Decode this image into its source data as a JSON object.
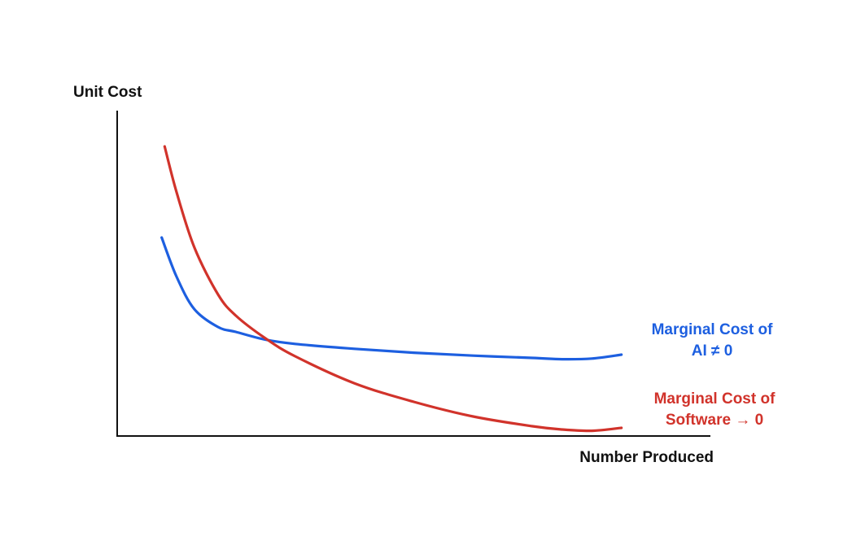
{
  "chart_data": {
    "type": "line",
    "title": "",
    "xlabel": "Number Produced",
    "ylabel": "Unit Cost",
    "xlim": [
      0,
      100
    ],
    "ylim": [
      0,
      100
    ],
    "grid": false,
    "legend": "none",
    "series": [
      {
        "name": "Marginal Cost of AI ≠ 0",
        "label_lines": [
          "Marginal Cost of",
          "AI ≠ 0"
        ],
        "color": "#1d5fe0",
        "x": [
          7.5,
          10,
          13,
          17,
          20,
          25,
          30,
          40,
          50,
          60,
          70,
          75,
          80,
          85
        ],
        "y": [
          61,
          49,
          39,
          33.5,
          32,
          29.6,
          28.3,
          26.8,
          25.6,
          24.7,
          24,
          23.6,
          23.8,
          25
        ]
      },
      {
        "name": "Marginal Cost of Software → 0",
        "label_lines": [
          "Marginal Cost of",
          "Software → 0"
        ],
        "color": "#d1332b",
        "x": [
          8,
          10,
          13,
          17,
          20,
          25,
          30,
          40,
          50,
          60,
          70,
          75,
          80,
          85
        ],
        "y": [
          89,
          75,
          58,
          43.5,
          37,
          30,
          24.5,
          16.2,
          10.5,
          6,
          3,
          2,
          1.6,
          2.5
        ]
      }
    ]
  }
}
